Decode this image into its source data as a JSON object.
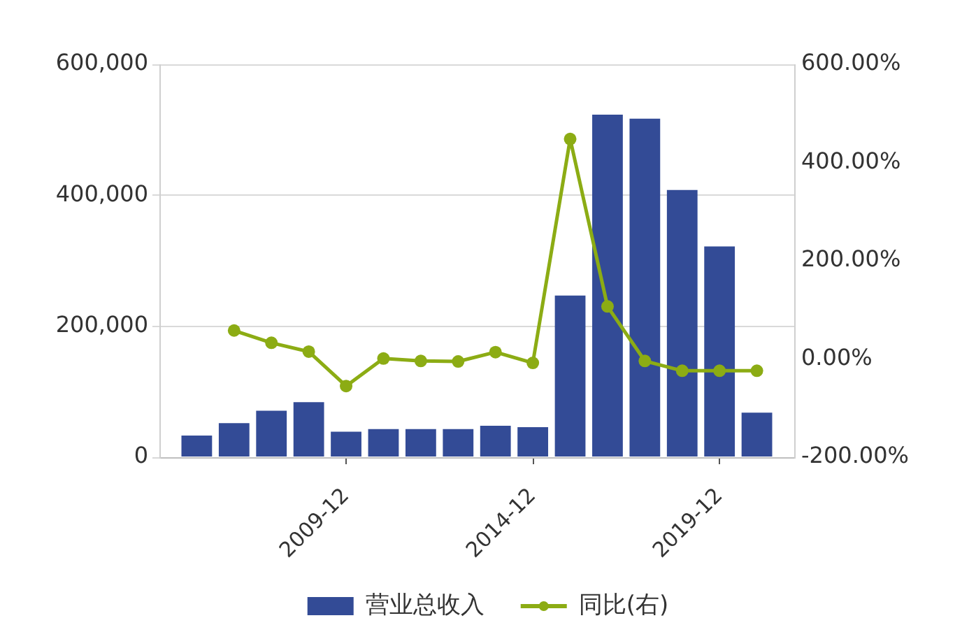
{
  "chart_data": {
    "type": "bar",
    "categories": [
      null,
      null,
      null,
      null,
      "2009-12",
      null,
      null,
      null,
      null,
      "2014-12",
      null,
      null,
      null,
      null,
      "2019-12",
      null
    ],
    "series": [
      {
        "name": "营业总收入",
        "color": "#334b96",
        "values": [
          33000,
          52000,
          71000,
          84000,
          39000,
          43000,
          43000,
          43000,
          48000,
          46000,
          247000,
          523000,
          517000,
          408000,
          322000,
          68000
        ]
      },
      {
        "name": "同比(右)",
        "type": "line",
        "axis": "y2",
        "color": "#8cac14",
        "values": [
          null,
          58,
          33,
          15,
          -55,
          1,
          -4,
          -5,
          14,
          -8,
          448,
          107,
          -4,
          -24,
          -24,
          -24
        ]
      }
    ],
    "ylim": [
      0,
      600000
    ],
    "yticks": [
      0,
      {
        "value": 200000,
        "label": "200,000"
      },
      {
        "value": 400000,
        "label": "400,000"
      },
      {
        "value": 600000,
        "label": "600,000"
      }
    ],
    "y2lim": [
      -200,
      600
    ],
    "y2ticks": [
      {
        "value": -200,
        "label": "-200.00%"
      },
      {
        "value": 0,
        "label": "0.00%"
      },
      {
        "value": 200,
        "label": "200.00%"
      },
      {
        "value": 400,
        "label": "400.00%"
      },
      {
        "value": 600,
        "label": "600.00%"
      }
    ],
    "grid": "y",
    "legend": "bottom",
    "marker": "circle"
  }
}
